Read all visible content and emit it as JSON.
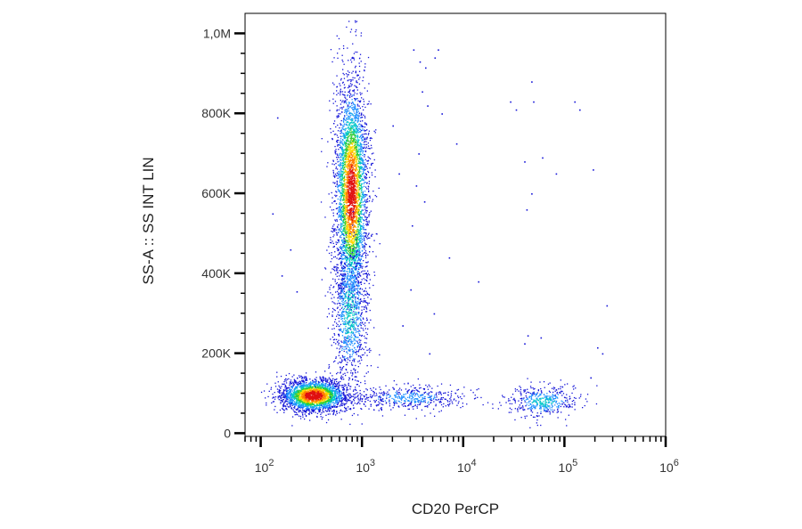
{
  "chart_data": {
    "type": "scatter",
    "subtype": "flow-cytometry-density-dot-plot",
    "title": "",
    "xlabel": "CD20 PerCP",
    "ylabel": "SS-A :: SS INT LIN",
    "x_scale": "log",
    "y_scale": "linear",
    "xlim": [
      70,
      1000000
    ],
    "ylim": [
      -8000,
      1050000
    ],
    "x_ticks": [
      {
        "value": 100,
        "base": "10",
        "exp": "2"
      },
      {
        "value": 1000,
        "base": "10",
        "exp": "3"
      },
      {
        "value": 10000,
        "base": "10",
        "exp": "4"
      },
      {
        "value": 100000,
        "base": "10",
        "exp": "5"
      },
      {
        "value": 1000000,
        "base": "10",
        "exp": "6"
      }
    ],
    "y_ticks": [
      {
        "value": 0,
        "label": "0"
      },
      {
        "value": 200000,
        "label": "200K"
      },
      {
        "value": 400000,
        "label": "400K"
      },
      {
        "value": 600000,
        "label": "600K"
      },
      {
        "value": 800000,
        "label": "800K"
      },
      {
        "value": 1000000,
        "label": "1,0M"
      }
    ],
    "grid": false,
    "legend": "none",
    "color_scale": [
      "#1414d8",
      "#1e90ff",
      "#00c8c8",
      "#32cd32",
      "#ffd700",
      "#ff7f00",
      "#e01010"
    ],
    "populations": [
      {
        "center_x": 330,
        "center_y": 95000,
        "events": 2600,
        "spread_log10_x": 0.16,
        "spread_y": 20000,
        "peak_density": 1.0
      },
      {
        "center_x": 780,
        "center_y": 600000,
        "events": 3800,
        "spread_log10_x": 0.08,
        "spread_y": 140000,
        "peak_density": 0.95
      },
      {
        "center_x": 750,
        "center_y": 300000,
        "events": 900,
        "spread_log10_x": 0.09,
        "spread_y": 90000,
        "peak_density": 0.35
      },
      {
        "center_x": 2800,
        "center_y": 90000,
        "events": 500,
        "spread_log10_x": 0.3,
        "spread_y": 15000,
        "peak_density": 0.2
      },
      {
        "center_x": 60000,
        "center_y": 80000,
        "events": 450,
        "spread_log10_x": 0.18,
        "spread_y": 20000,
        "peak_density": 0.3
      }
    ],
    "sparse_events": [
      [
        3200,
        960000
      ],
      [
        3700,
        930000
      ],
      [
        4200,
        915000
      ],
      [
        5200,
        940000
      ],
      [
        5600,
        960000
      ],
      [
        3900,
        855000
      ],
      [
        4400,
        820000
      ],
      [
        6100,
        800000
      ],
      [
        3600,
        700000
      ],
      [
        3400,
        620000
      ],
      [
        4100,
        580000
      ],
      [
        8500,
        725000
      ],
      [
        3100,
        520000
      ],
      [
        7200,
        440000
      ],
      [
        5100,
        300000
      ],
      [
        4600,
        200000
      ],
      [
        14000,
        380000
      ],
      [
        29000,
        830000
      ],
      [
        47000,
        880000
      ],
      [
        49000,
        830000
      ],
      [
        33000,
        810000
      ],
      [
        40000,
        680000
      ],
      [
        42000,
        560000
      ],
      [
        47000,
        600000
      ],
      [
        60000,
        690000
      ],
      [
        82000,
        650000
      ],
      [
        125000,
        830000
      ],
      [
        140000,
        810000
      ],
      [
        190000,
        660000
      ],
      [
        260000,
        320000
      ],
      [
        235000,
        200000
      ],
      [
        210000,
        215000
      ],
      [
        40000,
        225000
      ],
      [
        43000,
        245000
      ],
      [
        58000,
        240000
      ],
      [
        2300,
        650000
      ],
      [
        2000,
        770000
      ],
      [
        130,
        550000
      ],
      [
        145,
        790000
      ],
      [
        160,
        395000
      ],
      [
        195,
        460000
      ],
      [
        225,
        355000
      ],
      [
        2500,
        270000
      ],
      [
        3000,
        360000
      ],
      [
        180000,
        140000
      ]
    ]
  }
}
